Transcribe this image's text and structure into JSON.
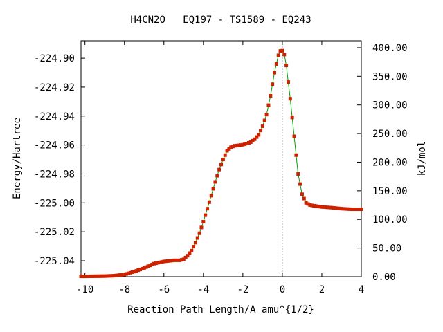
{
  "chart_data": {
    "type": "line",
    "title": "H4CN2O   EQ197 - TS1589 - EQ243",
    "xlabel": "Reaction Path Length/A amu^{1/2}",
    "ylabel": "Energy/Hartree",
    "y2label": "kJ/mol",
    "xlim": [
      -10.2,
      4.0
    ],
    "ylim": [
      -225.051,
      -224.888
    ],
    "y2lim": [
      0.0,
      412.0
    ],
    "x_ticks": [
      -10,
      -8,
      -6,
      -4,
      -2,
      0,
      2,
      4
    ],
    "x_tick_labels": [
      "-10",
      "-8",
      "-6",
      "-4",
      "-2",
      "0",
      "2",
      "4"
    ],
    "y_ticks": [
      -224.9,
      -224.92,
      -224.94,
      -224.96,
      -224.98,
      -225.0,
      -225.02,
      -225.04
    ],
    "y_tick_labels": [
      "-224.90",
      "-224.92",
      "-224.94",
      "-224.96",
      "-224.98",
      "-225.00",
      "-225.02",
      "-225.04"
    ],
    "y2_ticks": [
      0,
      50,
      100,
      150,
      200,
      250,
      300,
      350,
      400
    ],
    "y2_tick_labels": [
      "0.00",
      "50.00",
      "100.00",
      "150.00",
      "200.00",
      "250.00",
      "300.00",
      "350.00",
      "400.00"
    ],
    "ts_marker_x": 0.0,
    "line_color": "#00a000",
    "marker_color": "#cc2200",
    "series": [
      {
        "x": [
          -10.2,
          -10.0,
          -9.5,
          -9.0,
          -8.5,
          -8.0,
          -7.5,
          -7.0,
          -6.5,
          -6.0,
          -5.5,
          -5.2,
          -5.0,
          -4.8,
          -4.6,
          -4.4,
          -4.2,
          -4.0,
          -3.8,
          -3.6,
          -3.4,
          -3.2,
          -3.0,
          -2.8,
          -2.6,
          -2.4,
          -2.2,
          -2.0,
          -1.8,
          -1.6,
          -1.4,
          -1.2,
          -1.0,
          -0.8,
          -0.6,
          -0.4,
          -0.2,
          -0.1,
          0.0,
          0.1,
          0.2,
          0.4,
          0.6,
          0.8,
          1.0,
          1.2,
          1.4,
          1.6,
          2.0,
          2.5,
          3.0,
          3.5,
          4.0
        ],
        "y": [
          -225.0508,
          -225.0508,
          -225.0507,
          -225.0506,
          -225.0503,
          -225.0495,
          -225.0475,
          -225.045,
          -225.042,
          -225.0405,
          -225.0397,
          -225.0397,
          -225.039,
          -225.0365,
          -225.033,
          -225.0275,
          -225.021,
          -225.013,
          -225.004,
          -224.995,
          -224.9855,
          -224.977,
          -224.97,
          -224.964,
          -224.9615,
          -224.9605,
          -224.9602,
          -224.9598,
          -224.959,
          -224.958,
          -224.956,
          -224.953,
          -224.947,
          -224.939,
          -224.926,
          -224.91,
          -224.898,
          -224.895,
          -224.8948,
          -224.8975,
          -224.905,
          -224.928,
          -224.954,
          -224.98,
          -224.994,
          -225.0,
          -225.0015,
          -225.002,
          -225.0028,
          -225.0033,
          -225.004,
          -225.0044,
          -225.0044
        ]
      }
    ]
  }
}
